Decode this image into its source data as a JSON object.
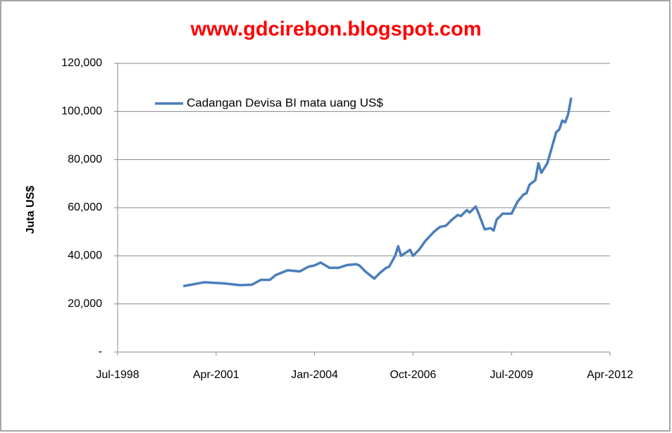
{
  "chart_data": {
    "type": "line",
    "title": "www.gdcirebon.blogspot.com",
    "y_label": "Juta US$",
    "x": [
      "2000-05",
      "2000-12",
      "2001-07",
      "2001-12",
      "2002-04",
      "2002-07",
      "2002-10",
      "2002-12",
      "2003-04",
      "2003-08",
      "2003-11",
      "2004-01",
      "2004-03",
      "2004-06",
      "2004-09",
      "2004-12",
      "2005-03",
      "2005-04",
      "2005-06",
      "2005-09",
      "2005-11",
      "2006-01",
      "2006-02",
      "2006-04",
      "2006-05",
      "2006-06",
      "2006-09",
      "2006-10",
      "2006-12",
      "2007-02",
      "2007-05",
      "2007-07",
      "2007-09",
      "2007-11",
      "2008-01",
      "2008-02",
      "2008-04",
      "2008-05",
      "2008-07",
      "2008-08",
      "2008-10",
      "2008-12",
      "2009-01",
      "2009-02",
      "2009-04",
      "2009-07",
      "2009-09",
      "2009-11",
      "2009-12",
      "2010-01",
      "2010-03",
      "2010-04",
      "2010-05",
      "2010-07",
      "2010-10",
      "2010-11",
      "2010-12",
      "2011-01",
      "2011-02",
      "2011-03"
    ],
    "series": [
      {
        "name": "Cadangan Devisa BI mata uang  US$",
        "color": "#4a7ebb",
        "values": [
          27400,
          29000,
          28500,
          27800,
          28000,
          30000,
          30000,
          32000,
          34000,
          33500,
          35500,
          36000,
          37200,
          35000,
          35000,
          36200,
          36500,
          36000,
          33500,
          30500,
          33000,
          35000,
          35500,
          40000,
          44000,
          40000,
          42500,
          40000,
          42500,
          46000,
          50000,
          52000,
          52500,
          55000,
          57000,
          56500,
          59000,
          58000,
          60500,
          57500,
          51000,
          51500,
          50500,
          55000,
          57500,
          57500,
          62500,
          65500,
          66000,
          69500,
          71500,
          78500,
          74500,
          78500,
          91500,
          92500,
          96200,
          95500,
          99000,
          105700
        ]
      }
    ],
    "xlim": [
      "1998-07",
      "2012-04"
    ],
    "xticks": [
      {
        "value": "1998-07",
        "label": "Jul-1998"
      },
      {
        "value": "2001-04",
        "label": "Apr-2001"
      },
      {
        "value": "2004-01",
        "label": "Jan-2004"
      },
      {
        "value": "2006-10",
        "label": "Oct-2006"
      },
      {
        "value": "2009-07",
        "label": "Jul-2009"
      },
      {
        "value": "2012-04",
        "label": "Apr-2012"
      }
    ],
    "ylim": [
      0,
      120000
    ],
    "yticks": [
      {
        "value": 0,
        "label": "-"
      },
      {
        "value": 20000,
        "label": "20,000"
      },
      {
        "value": 40000,
        "label": "40,000"
      },
      {
        "value": 60000,
        "label": "60,000"
      },
      {
        "value": 80000,
        "label": "80,000"
      },
      {
        "value": 100000,
        "label": "100,000"
      },
      {
        "value": 120000,
        "label": "120,000"
      }
    ],
    "grid": true,
    "legend": "top-left"
  }
}
